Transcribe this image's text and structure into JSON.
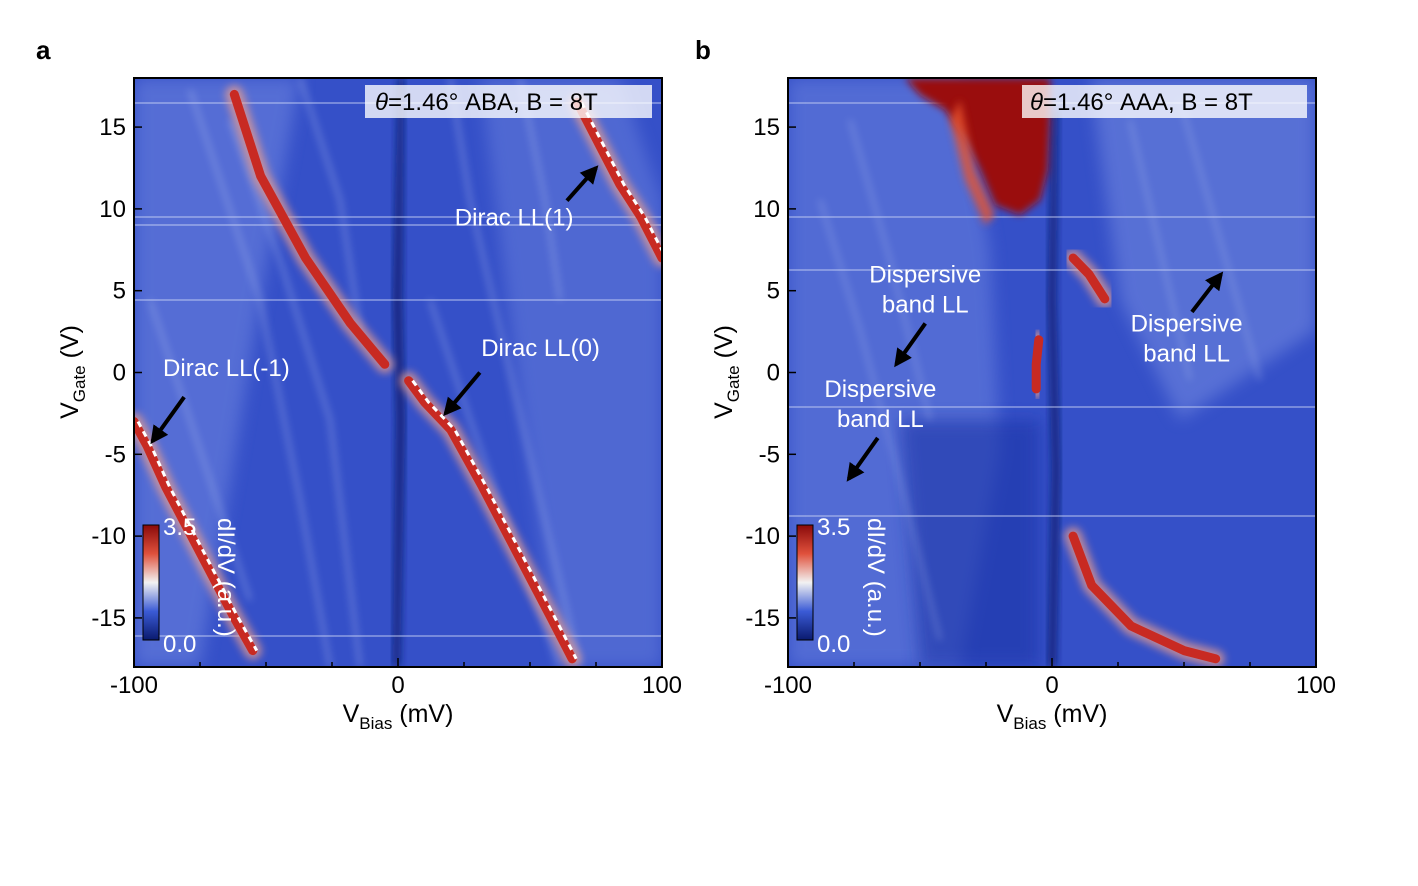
{
  "chart_data": [
    {
      "panel": "a",
      "type": "heatmap",
      "title": "θ=1.46° ABA, B = 8T",
      "title_symbol": "θ",
      "title_rest": "=1.46° ABA, B = 8T",
      "xlabel_main": "V",
      "xlabel_sub": "Bias",
      "xlabel_unit": " (mV)",
      "ylabel_main": "V",
      "ylabel_sub": "Gate",
      "ylabel_unit": " (V)",
      "xlim": [
        -100,
        100
      ],
      "ylim": [
        -18,
        18
      ],
      "xticks": [
        -100,
        0,
        100
      ],
      "xtick_labels": [
        "-100",
        "0",
        "100"
      ],
      "yticks": [
        15,
        10,
        5,
        0,
        -5,
        -10,
        -15
      ],
      "ytick_labels": [
        "15",
        "10",
        "5",
        "0",
        "-5",
        "-10",
        "-15"
      ],
      "colorbar": {
        "min_label": "0.0",
        "max_label": "3.5",
        "label": "dI/dV (a.u.)",
        "colors": [
          "#0a1a6e",
          "#3b5bd6",
          "#f2f2f2",
          "#e0513c",
          "#8a0a0a"
        ]
      },
      "features": [
        {
          "name": "Dirac LL(-1)",
          "points": [
            [
              -100,
              -3
            ],
            [
              -95,
              -4.5
            ],
            [
              -88,
              -7
            ],
            [
              -75,
              -11
            ],
            [
              -62,
              -15
            ],
            [
              -55,
              -17
            ]
          ]
        },
        {
          "name": "Dirac LL(0)",
          "points": [
            [
              4,
              -0.5
            ],
            [
              10,
              -1.8
            ],
            [
              20,
              -3.5
            ],
            [
              32,
              -7
            ],
            [
              45,
              -11
            ],
            [
              58,
              -15
            ],
            [
              66,
              -17.5
            ]
          ]
        },
        {
          "name": "Dirac LL(1)",
          "points": [
            [
              68,
              16.5
            ],
            [
              76,
              14
            ],
            [
              84,
              11.5
            ],
            [
              92,
              9.5
            ],
            [
              100,
              7
            ]
          ]
        },
        {
          "name": "upper red band",
          "points": [
            [
              -62,
              17
            ],
            [
              -52,
              12
            ],
            [
              -35,
              7
            ],
            [
              -18,
              3
            ],
            [
              -5,
              0.5
            ]
          ]
        }
      ],
      "annotations": [
        {
          "text": "Dirac LL(1)",
          "lines": [
            "Dirac LL(1)"
          ],
          "arrow_tip": [
            75,
            12.5
          ],
          "arrow_tail": [
            64,
            10.5
          ],
          "text_pos": [
            44,
            9
          ]
        },
        {
          "text": "Dirac LL(0)",
          "lines": [
            "Dirac LL(0)"
          ],
          "arrow_tip": [
            18,
            -2.5
          ],
          "arrow_tail": [
            31,
            0
          ],
          "text_pos": [
            54,
            1
          ]
        },
        {
          "text": "Dirac LL(-1)",
          "lines": [
            "Dirac LL(-1)"
          ],
          "arrow_tip": [
            -93,
            -4.2
          ],
          "arrow_tail": [
            -81,
            -1.5
          ],
          "text_pos": [
            -65,
            -0.2
          ]
        }
      ]
    },
    {
      "panel": "b",
      "type": "heatmap",
      "title": "θ=1.46° AAA, B = 8T",
      "title_symbol": "θ",
      "title_rest": "=1.46° AAA, B = 8T",
      "xlabel_main": "V",
      "xlabel_sub": "Bias",
      "xlabel_unit": " (mV)",
      "ylabel_main": "V",
      "ylabel_sub": "Gate",
      "ylabel_unit": " (V)",
      "xlim": [
        -100,
        100
      ],
      "ylim": [
        -18,
        18
      ],
      "xticks": [
        -100,
        0,
        100
      ],
      "xtick_labels": [
        "-100",
        "0",
        "100"
      ],
      "yticks": [
        15,
        10,
        5,
        0,
        -5,
        -10,
        -15
      ],
      "ytick_labels": [
        "15",
        "10",
        "5",
        "0",
        "-5",
        "-10",
        "-15"
      ],
      "colorbar": {
        "min_label": "0.0",
        "max_label": "3.5",
        "label": "dI/dV (a.u.)",
        "colors": [
          "#0a1a6e",
          "#3b5bd6",
          "#f2f2f2",
          "#e0513c",
          "#8a0a0a"
        ]
      },
      "features": [
        {
          "name": "lower red branch",
          "points": [
            [
              8,
              -10
            ],
            [
              15,
              -13
            ],
            [
              30,
              -15.5
            ],
            [
              50,
              -17
            ],
            [
              62,
              -17.5
            ]
          ]
        },
        {
          "name": "right red band",
          "points": [
            [
              8,
              7
            ],
            [
              14,
              6
            ],
            [
              20,
              4.5
            ]
          ]
        },
        {
          "name": "left red band",
          "points": [
            [
              -5,
              2
            ],
            [
              -6,
              0.5
            ],
            [
              -6,
              -1
            ]
          ]
        }
      ],
      "annotations": [
        {
          "text": "Dispersive band LL",
          "lines": [
            "Dispersive",
            "band LL"
          ],
          "arrow_tip": [
            -59,
            0.5
          ],
          "arrow_tail": [
            -48,
            3
          ],
          "text_pos": [
            -48,
            5.5
          ]
        },
        {
          "text": "Dispersive band LL",
          "lines": [
            "Dispersive",
            "band LL"
          ],
          "arrow_tip": [
            -77,
            -6.5
          ],
          "arrow_tail": [
            -66,
            -4
          ],
          "text_pos": [
            -65,
            -1.5
          ]
        },
        {
          "text": "Dispersive band LL",
          "lines": [
            "Dispersive",
            "band LL"
          ],
          "arrow_tip": [
            64,
            6
          ],
          "arrow_tail": [
            53,
            3.7
          ],
          "text_pos": [
            51,
            2.5
          ]
        }
      ]
    }
  ]
}
